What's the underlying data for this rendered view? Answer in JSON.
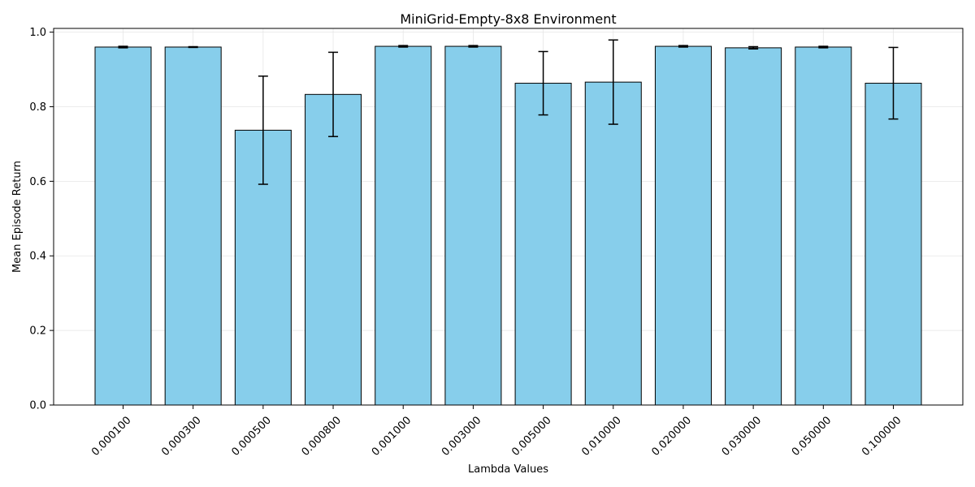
{
  "chart_data": {
    "type": "bar",
    "title": "MiniGrid-Empty-8x8 Environment",
    "xlabel": "Lambda Values",
    "ylabel": "Mean Episode Return",
    "categories": [
      "0.000100",
      "0.000300",
      "0.000500",
      "0.000800",
      "0.001000",
      "0.003000",
      "0.005000",
      "0.010000",
      "0.020000",
      "0.030000",
      "0.050000",
      "0.100000"
    ],
    "values": [
      0.96,
      0.96,
      0.737,
      0.833,
      0.962,
      0.962,
      0.863,
      0.866,
      0.962,
      0.958,
      0.96,
      0.863
    ],
    "errors": [
      0.002,
      0.001,
      0.145,
      0.113,
      0.002,
      0.002,
      0.085,
      0.113,
      0.002,
      0.003,
      0.002,
      0.096
    ],
    "yticks": [
      "0.0",
      "0.2",
      "0.4",
      "0.6",
      "0.8",
      "1.0"
    ],
    "ylim": [
      0,
      1.01
    ],
    "grid": true,
    "colors": {
      "bar_fill": "#87CEEB",
      "bar_edge": "#000000",
      "grid": "#e6e6e6",
      "error": "#000000"
    }
  }
}
